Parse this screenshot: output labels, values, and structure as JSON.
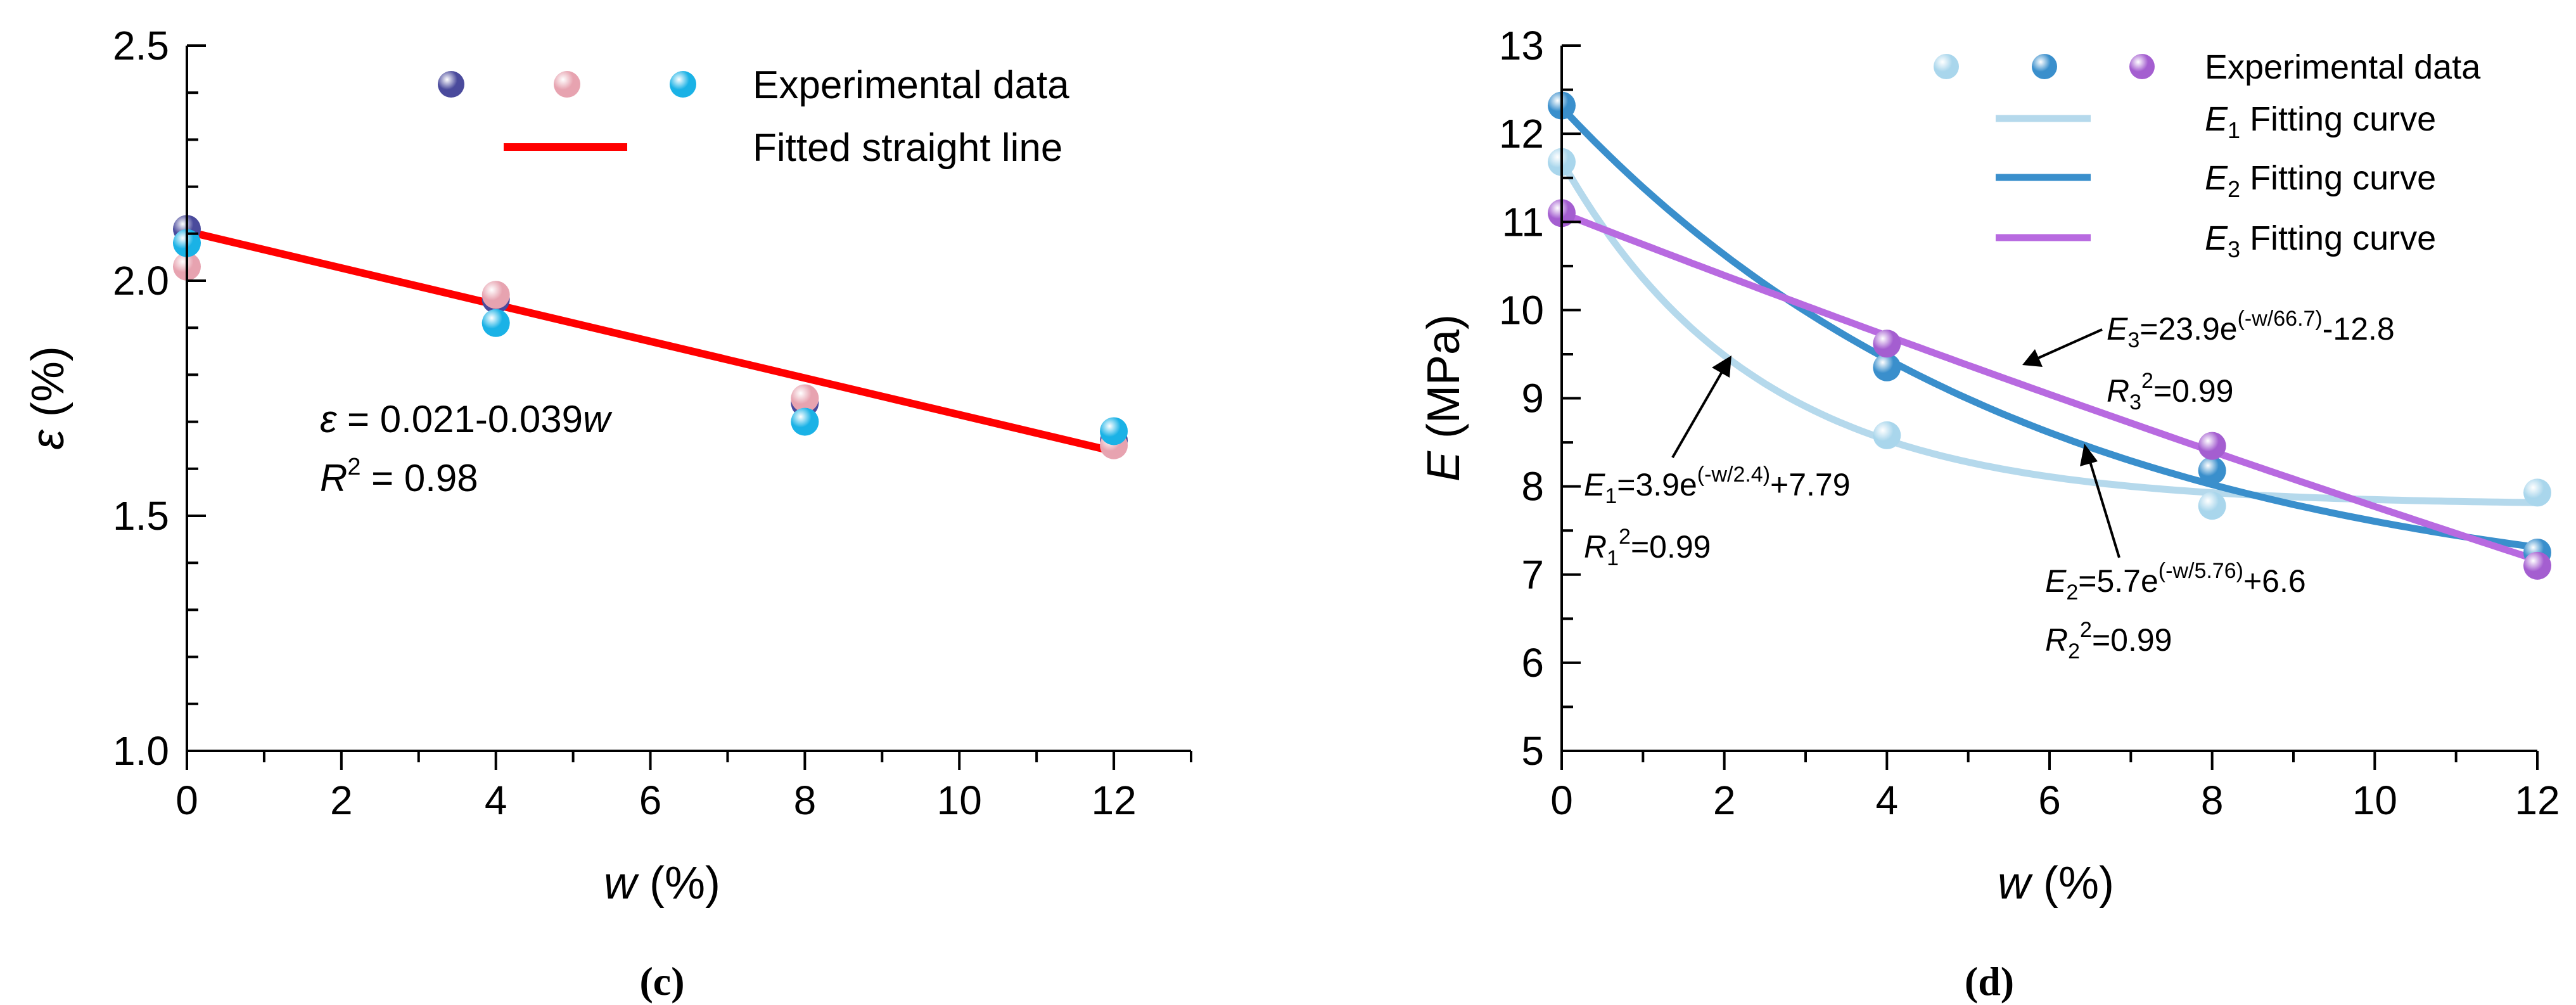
{
  "chart_data": [
    {
      "type": "scatter",
      "panel_label": "(c)",
      "xlabel": "w (%)",
      "ylabel": "ε (%)",
      "xlim": [
        0,
        13
      ],
      "ylim": [
        1.0,
        2.5
      ],
      "xticks": [
        0,
        2,
        4,
        6,
        8,
        10,
        12
      ],
      "yticks": [
        1.0,
        1.5,
        2.0,
        2.5
      ],
      "xtick_labels": [
        "0",
        "2",
        "4",
        "6",
        "8",
        "10",
        "12"
      ],
      "ytick_labels": [
        "1.0",
        "1.5",
        "2.0",
        "2.5"
      ],
      "series": [
        {
          "name": "Experimental data (purple)",
          "color": "#4a4a9c",
          "x": [
            0,
            4,
            8,
            12
          ],
          "y": [
            2.11,
            1.96,
            1.74,
            1.66
          ]
        },
        {
          "name": "Experimental data (pink)",
          "color": "#e7a3b0",
          "x": [
            0,
            4,
            8,
            12
          ],
          "y": [
            2.03,
            1.97,
            1.75,
            1.65
          ]
        },
        {
          "name": "Experimental data (blue)",
          "color": "#1ab2e6",
          "x": [
            0,
            4,
            8,
            12
          ],
          "y": [
            2.08,
            1.91,
            1.7,
            1.68
          ]
        }
      ],
      "fit": {
        "name": "Fitted straight line",
        "color": "#ff0000",
        "x": [
          0,
          12
        ],
        "y": [
          2.105,
          1.637
        ]
      },
      "legend": {
        "placement": "top-right",
        "marker_label": "Experimental data",
        "line_label": "Fitted straight line"
      },
      "annotations": [
        {
          "id": "eq",
          "prefix": "ε",
          "text": " = 0.021-0.039",
          "suffix": "w"
        },
        {
          "id": "r2",
          "prefix": "R",
          "sup": "2",
          "text": " = 0.98"
        }
      ]
    },
    {
      "type": "scatter",
      "panel_label": "(d)",
      "xlabel": "w (%)",
      "ylabel": "E (MPa)",
      "xlim": [
        0,
        12
      ],
      "ylim": [
        5,
        13
      ],
      "xticks": [
        0,
        2,
        4,
        6,
        8,
        10,
        12
      ],
      "yticks": [
        5,
        6,
        7,
        8,
        9,
        10,
        11,
        12,
        13
      ],
      "xtick_labels": [
        "0",
        "2",
        "4",
        "6",
        "8",
        "10",
        "12"
      ],
      "ytick_labels": [
        "5",
        "6",
        "7",
        "8",
        "9",
        "10",
        "11",
        "12",
        "13"
      ],
      "series": [
        {
          "name": "E1 data",
          "color": "#a9d6ec",
          "x": [
            0,
            4,
            8,
            12
          ],
          "y": [
            11.68,
            8.58,
            7.78,
            7.93
          ]
        },
        {
          "name": "E2 data",
          "color": "#3a8fcc",
          "x": [
            0,
            4,
            8,
            12
          ],
          "y": [
            12.32,
            9.35,
            8.18,
            7.25
          ]
        },
        {
          "name": "E3 data",
          "color": "#a45ed0",
          "x": [
            0,
            4,
            8,
            12
          ],
          "y": [
            11.1,
            9.62,
            8.46,
            7.1
          ]
        }
      ],
      "fits": [
        {
          "name": "E1 Fitting curve",
          "color": "#b5d9ec",
          "a": 3.9,
          "b": 2.4,
          "c": 7.79
        },
        {
          "name": "E2 Fitting curve",
          "color": "#3a8fcc",
          "a": 5.7,
          "b": 5.76,
          "c": 6.6
        },
        {
          "name": "E3 Fitting curve",
          "color": "#b86ae0",
          "a": 23.9,
          "b": 66.7,
          "c": -12.8
        }
      ],
      "legend": {
        "placement": "top-right",
        "marker_label": "Experimental data",
        "items": [
          {
            "var": "E",
            "sub": "1",
            "label": " Fitting curve"
          },
          {
            "var": "E",
            "sub": "2",
            "label": " Fitting curve"
          },
          {
            "var": "E",
            "sub": "3",
            "label": " Fitting curve"
          }
        ]
      },
      "annotations": [
        {
          "id": "e1",
          "var": "E",
          "sub": "1",
          "eq": "=3.9e",
          "exp": "(-w/2.4)",
          "tail": "+7.79",
          "r": "R",
          "rsub": "1",
          "rsup": "2",
          "rval": "=0.99"
        },
        {
          "id": "e2",
          "var": "E",
          "sub": "2",
          "eq": "=5.7e",
          "exp": "(-w/5.76)",
          "tail": "+6.6",
          "r": "R",
          "rsub": "2",
          "rsup": "2",
          "rval": "=0.99"
        },
        {
          "id": "e3",
          "var": "E",
          "sub": "3",
          "eq": "=23.9e",
          "exp": "(-w/66.7)",
          "tail": "-12.8",
          "r": "R",
          "rsub": "3",
          "rsup": "2",
          "rval": "=0.99"
        }
      ]
    }
  ]
}
